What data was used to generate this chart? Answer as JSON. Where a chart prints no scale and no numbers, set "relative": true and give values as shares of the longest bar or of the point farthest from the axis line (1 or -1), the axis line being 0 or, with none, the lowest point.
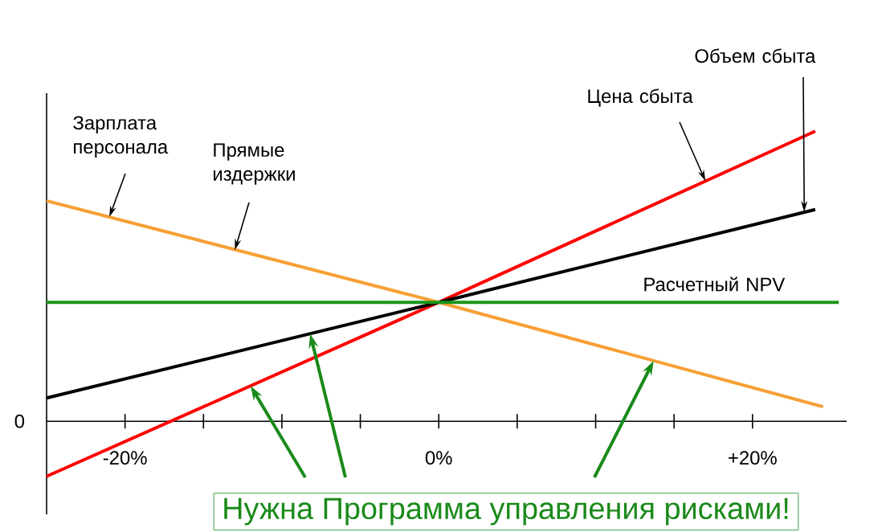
{
  "chart_data": {
    "type": "line",
    "relative": true,
    "legend": false,
    "grid": false,
    "marker": "none",
    "line_style": "solid",
    "xlim": [
      -25,
      26
    ],
    "xticks": [
      {
        "value": -20,
        "label": "-20%"
      },
      {
        "value": -15,
        "label": null
      },
      {
        "value": -10,
        "label": null
      },
      {
        "value": -5,
        "label": null
      },
      {
        "value": 0,
        "label": "0%"
      },
      {
        "value": 5,
        "label": null
      },
      {
        "value": 10,
        "label": null
      },
      {
        "value": 15,
        "label": null
      },
      {
        "value": 20,
        "label": "+20%"
      }
    ],
    "series": [
      {
        "name": "Цена сбыта",
        "color": "#ff0000",
        "x": [
          -25,
          0,
          24
        ],
        "values": [
          -0.19,
          0.41,
          1
        ]
      },
      {
        "name": "Объем сбыта",
        "color": "#000000",
        "x": [
          -25,
          0,
          24
        ],
        "values": [
          0.08,
          0.41,
          0.73
        ]
      },
      {
        "name": "Зарплата персонала",
        "color": "#f7a035",
        "x": [
          -25,
          0,
          24.5
        ],
        "values": [
          0.76,
          0.41,
          0.05
        ]
      },
      {
        "name": "Расчетный NPV",
        "color": "#1a961a",
        "x": [
          -25,
          0,
          25.5
        ],
        "values": [
          0.41,
          0.41,
          0.41
        ]
      }
    ],
    "annotations": [
      {
        "text": "Прямые издержки",
        "x": -13,
        "y": 0.59
      },
      "Нужна Программа управления рисками!",
      "0"
    ]
  }
}
